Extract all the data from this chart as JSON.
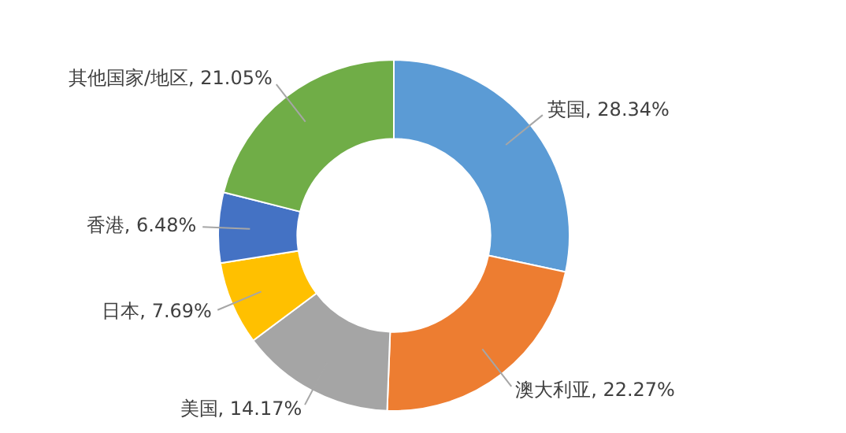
{
  "chart_data": {
    "type": "donut",
    "categories": [
      "英国",
      "澳大利亚",
      "美国",
      "日本",
      "香港",
      "其他国家/地区"
    ],
    "values": [
      28.34,
      22.27,
      14.17,
      7.69,
      6.48,
      21.05
    ],
    "value_labels": [
      "28.34%",
      "22.27%",
      "14.17%",
      "7.69%",
      "6.48%",
      "21.05%"
    ],
    "colors": [
      "#5b9bd5",
      "#ed7d31",
      "#a5a5a5",
      "#ffc000",
      "#4472c4",
      "#70ad47"
    ],
    "legend": false
  }
}
